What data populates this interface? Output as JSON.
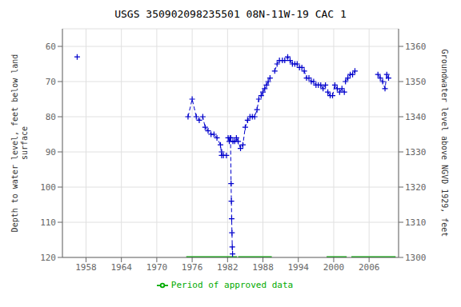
{
  "chart_data": {
    "type": "line",
    "title": "USGS 350902098235501 08N-11W-19 CAC 1",
    "ylabel": "Depth to water level, feet below land\n surface",
    "y2label": "Groundwater level above NGVD 1929, feet",
    "xlim": [
      1954,
      2011
    ],
    "xticks": [
      1958,
      1964,
      1970,
      1976,
      1982,
      1988,
      1994,
      2000,
      2006
    ],
    "ylim": [
      120,
      55
    ],
    "yticks": [
      60,
      70,
      80,
      90,
      100,
      110,
      120
    ],
    "y2lim": [
      1300,
      1365
    ],
    "y2ticks": [
      1300,
      1310,
      1320,
      1330,
      1340,
      1350,
      1360
    ],
    "grid": true,
    "legend": "bottom",
    "series": [
      {
        "color": "#0000cc",
        "marker": "plus",
        "line_style": "dashed",
        "segments": [
          [
            [
              1956.5,
              63
            ]
          ],
          [
            [
              1975.3,
              80
            ],
            [
              1976.0,
              75
            ],
            [
              1976.7,
              80
            ],
            [
              1977.2,
              81
            ],
            [
              1977.8,
              80
            ],
            [
              1978.2,
              83
            ],
            [
              1978.7,
              84
            ],
            [
              1979.2,
              85
            ],
            [
              1979.7,
              85
            ],
            [
              1980.2,
              86
            ],
            [
              1980.8,
              88
            ],
            [
              1981.0,
              91
            ]
          ],
          [
            [
              1981.3,
              91
            ],
            [
              1981.8,
              91
            ]
          ],
          [
            [
              1981.0,
              90
            ]
          ],
          [
            [
              1982.1,
              86
            ],
            [
              1982.3,
              87
            ],
            [
              1982.5,
              86
            ]
          ],
          [
            [
              1982.5,
              86
            ],
            [
              1982.6,
              99
            ],
            [
              1982.65,
              104
            ],
            [
              1982.7,
              109
            ],
            [
              1982.75,
              113
            ],
            [
              1982.8,
              117
            ],
            [
              1982.85,
              119
            ]
          ],
          [
            [
              1982.9,
              87
            ],
            [
              1983.2,
              87
            ],
            [
              1983.5,
              86
            ],
            [
              1983.8,
              87
            ],
            [
              1984.2,
              89
            ],
            [
              1984.6,
              88
            ],
            [
              1985.0,
              83
            ],
            [
              1985.4,
              81
            ],
            [
              1985.8,
              80
            ],
            [
              1986.2,
              80
            ],
            [
              1986.6,
              80
            ],
            [
              1987.0,
              78
            ],
            [
              1987.3,
              75
            ],
            [
              1987.7,
              74
            ],
            [
              1988.0,
              73
            ],
            [
              1988.3,
              72
            ],
            [
              1988.6,
              71
            ],
            [
              1988.9,
              70
            ],
            [
              1989.2,
              69
            ]
          ],
          [
            [
              1990.0,
              67
            ],
            [
              1990.4,
              65
            ],
            [
              1990.8,
              64
            ],
            [
              1991.3,
              64
            ],
            [
              1991.7,
              64
            ],
            [
              1992.2,
              63
            ],
            [
              1992.6,
              64
            ],
            [
              1993.0,
              65
            ],
            [
              1993.4,
              65
            ],
            [
              1993.8,
              65
            ],
            [
              1994.2,
              66
            ],
            [
              1994.6,
              66
            ],
            [
              1995.0,
              67
            ],
            [
              1995.4,
              69
            ],
            [
              1995.8,
              69
            ],
            [
              1996.2,
              70
            ],
            [
              1996.6,
              70
            ],
            [
              1997.0,
              71
            ],
            [
              1997.4,
              71
            ],
            [
              1997.8,
              71
            ],
            [
              1998.2,
              72
            ],
            [
              1998.6,
              71
            ]
          ],
          [
            [
              1999.0,
              73
            ],
            [
              1999.4,
              74
            ],
            [
              1999.8,
              74
            ],
            [
              2000.2,
              71
            ],
            [
              2000.6,
              72
            ],
            [
              2001.0,
              73
            ],
            [
              2001.4,
              72
            ],
            [
              2001.8,
              73
            ]
          ],
          [
            [
              2002.0,
              70
            ],
            [
              2002.4,
              69
            ],
            [
              2002.8,
              68
            ],
            [
              2003.2,
              68
            ],
            [
              2003.6,
              67
            ]
          ],
          [
            [
              2007.5,
              68
            ],
            [
              2007.9,
              69
            ],
            [
              2008.3,
              70
            ],
            [
              2008.7,
              72
            ],
            [
              2009.0,
              68
            ],
            [
              2009.3,
              69
            ]
          ]
        ]
      },
      {
        "name": "Period of approved data",
        "color": "#00aa00",
        "line_style": "solid",
        "periods": [
          [
            1975.0,
            1983.6
          ],
          [
            1983.8,
            1989.5
          ],
          [
            1998.8,
            2002.2
          ],
          [
            2003.0,
            2010.5
          ]
        ],
        "value": 120
      }
    ]
  }
}
